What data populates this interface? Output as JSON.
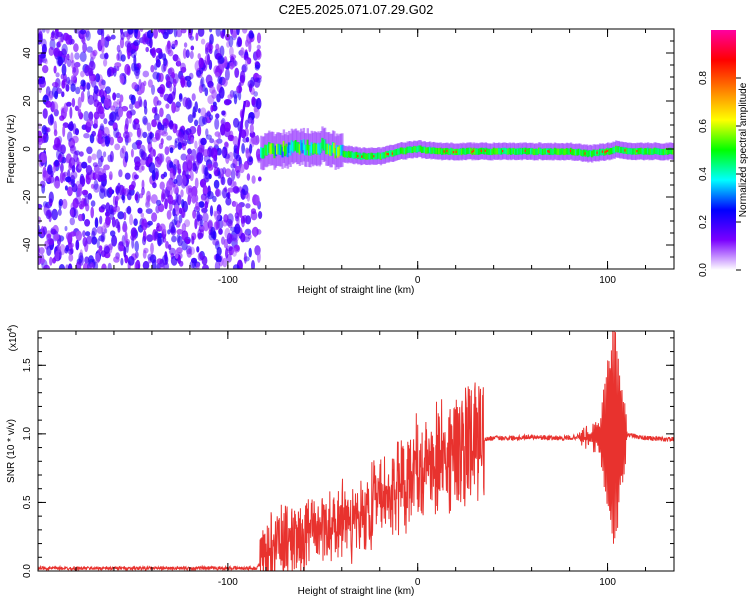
{
  "figure": {
    "title": "C2E5.2025.071.07.29.G02"
  },
  "chart_data": [
    {
      "type": "heatmap",
      "title": "C2E5.2025.071.07.29.G02",
      "xlabel": "Height of straight line (km)",
      "ylabel": "Frequency (Hz)",
      "xlim": [
        -200,
        135
      ],
      "ylim": [
        -50,
        50
      ],
      "xticks": [
        -100,
        0,
        100
      ],
      "yticks": [
        -40,
        -20,
        0,
        20,
        40
      ],
      "grid": false,
      "noise_region_x": [
        -200,
        -83
      ],
      "ridge": {
        "x": [
          -83,
          -70,
          -60,
          -50,
          -40,
          -30,
          -20,
          -10,
          0,
          10,
          20,
          40,
          60,
          80,
          90,
          100,
          105,
          110,
          120,
          135
        ],
        "y": [
          -1,
          0,
          0.5,
          1,
          -2,
          -3,
          -3,
          -1,
          0,
          -1,
          -1,
          -1,
          -1,
          -1,
          -2,
          -1,
          0,
          -1,
          -1,
          -1
        ]
      },
      "colorbar": {
        "label": "Normalized spectral amplitude",
        "range": [
          0,
          1
        ],
        "ticks": [
          "0.0",
          "0.2",
          "0.4",
          "0.6",
          "0.8"
        ],
        "colors": [
          "#ffffff",
          "#7a00ff",
          "#0000ff",
          "#00ffff",
          "#00ff00",
          "#ffff00",
          "#ff8000",
          "#ff0000",
          "#ff00a0"
        ]
      }
    },
    {
      "type": "line",
      "xlabel": "Height of straight line (km)",
      "ylabel": "SNR (10 * v/v)",
      "yscale_label": "(x10",
      "yscale_exp": "4",
      "xlim": [
        -200,
        135
      ],
      "ylim": [
        0,
        1.75
      ],
      "xticks": [
        -100,
        0,
        100
      ],
      "yticks": [
        "0.0",
        "0.5",
        "1.0",
        "1.5"
      ],
      "grid": false,
      "series": [
        {
          "color": "#e8322e",
          "x": [
            -200,
            -150,
            -100,
            -85,
            -80,
            -75,
            -70,
            -65,
            -60,
            -55,
            -50,
            -45,
            -40,
            -35,
            -30,
            -25,
            -20,
            -15,
            -10,
            -5,
            0,
            5,
            10,
            15,
            20,
            25,
            30,
            40,
            50,
            60,
            70,
            80,
            85,
            90,
            95,
            100,
            103,
            105,
            107,
            110,
            115,
            120,
            130,
            135
          ],
          "y": [
            0.02,
            0.02,
            0.02,
            0.02,
            0.1,
            0.25,
            0.2,
            0.28,
            0.22,
            0.3,
            0.32,
            0.35,
            0.38,
            0.35,
            0.42,
            0.45,
            0.55,
            0.5,
            0.65,
            0.7,
            0.8,
            0.75,
            0.85,
            0.82,
            0.9,
            0.92,
            0.95,
            0.97,
            0.97,
            0.98,
            0.97,
            0.97,
            0.98,
            0.95,
            0.9,
            0.85,
            0.3,
            1.6,
            0.6,
            1.0,
            0.98,
            0.97,
            0.96,
            0.96
          ]
        }
      ]
    }
  ]
}
